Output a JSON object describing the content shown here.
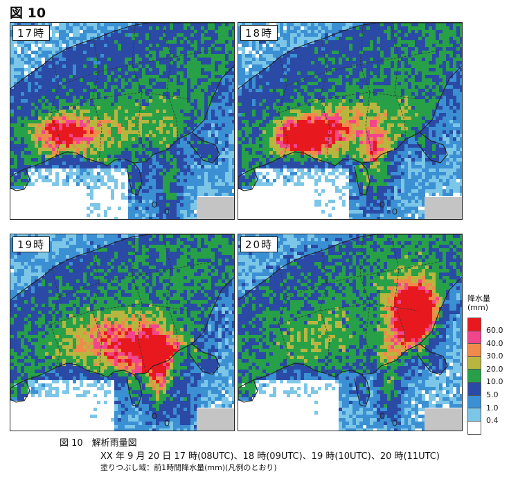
{
  "figure_label": "図 10",
  "panels": [
    {
      "label": "17時",
      "intensity": [
        0.15,
        0.3,
        0.75,
        0.9
      ]
    },
    {
      "label": "18時",
      "intensity": [
        0.2,
        0.5,
        0.85,
        0.7
      ]
    },
    {
      "label": "19時",
      "intensity": [
        0.55,
        0.75,
        0.35,
        0.8
      ]
    },
    {
      "label": "20時",
      "intensity": [
        0.7,
        0.95,
        0.2,
        0.55
      ]
    }
  ],
  "legend": {
    "title": "降水量",
    "unit": "(mm)",
    "items": [
      {
        "value": "60.0",
        "color": "#e8191e"
      },
      {
        "value": "40.0",
        "color": "#f2468c"
      },
      {
        "value": "30.0",
        "color": "#f08a4a"
      },
      {
        "value": "20.0",
        "color": "#b9b640"
      },
      {
        "value": "10.0",
        "color": "#27a048"
      },
      {
        "value": "5.0",
        "color": "#2a4aa6"
      },
      {
        "value": "1.0",
        "color": "#3b8fd3"
      },
      {
        "value": "0.4",
        "color": "#7cc6e8"
      },
      {
        "value": "",
        "color": "#ffffff"
      }
    ]
  },
  "colors": {
    "sea": "#ffffff",
    "land_outline": "#222222",
    "missing": "#c4c4c4"
  },
  "caption": {
    "title": "図 10　解析雨量図",
    "line": "XX 年 9 月 20 日 17 時(08UTC)、18 時(09UTC)、19 時(10UTC)、20 時(11UTC)",
    "note": "塗りつぶし域：前1時間降水量(mm)(凡例のとおり)"
  }
}
